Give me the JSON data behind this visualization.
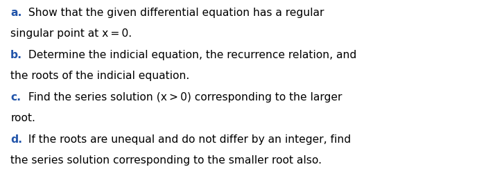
{
  "background_color": "#ffffff",
  "figsize": [
    6.88,
    2.54
  ],
  "dpi": 100,
  "font_size": 11.2,
  "label_color": "#2255aa",
  "text_color": "#000000",
  "font_family": "DejaVu Sans",
  "paragraphs": [
    {
      "label": "a.",
      "line1": " Show that the given differential equation has a regular",
      "line2": "singular point at x = 0."
    },
    {
      "label": "b.",
      "line1": " Determine the indicial equation, the recurrence relation, and",
      "line2": "the roots of the indicial equation."
    },
    {
      "label": "c.",
      "line1": " Find the series solution (x > 0) corresponding to the larger",
      "line2": "root."
    },
    {
      "label": "d.",
      "line1": " If the roots are unequal and do not differ by an integer, find",
      "line2": "the series solution corresponding to the smaller root also."
    }
  ]
}
